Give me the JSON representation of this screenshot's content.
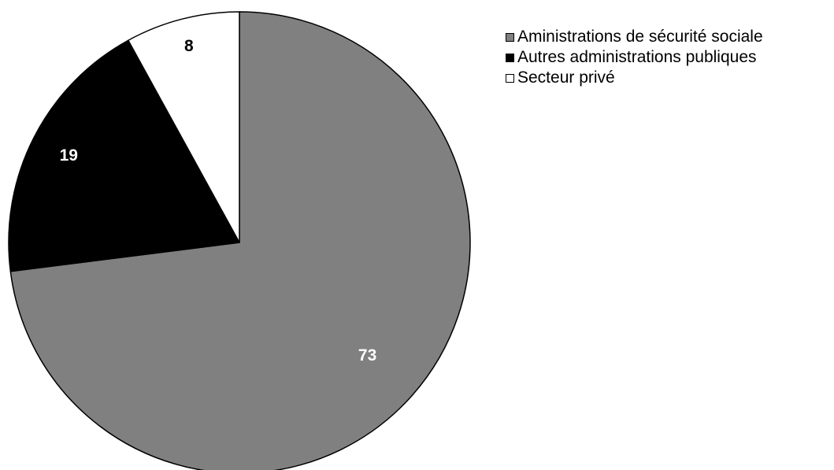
{
  "chart_data": {
    "type": "pie",
    "title": "",
    "start_angle": "12 o'clock, clockwise",
    "categories": [
      "Aministrations de sécurité sociale",
      "Autres administrations publiques",
      "Secteur privé"
    ],
    "values": [
      73,
      19,
      8
    ],
    "labels": [
      "73",
      "19",
      "8"
    ],
    "colors": [
      "#808080",
      "#000000",
      "#ffffff"
    ],
    "label_colors": [
      "#ffffff",
      "#ffffff",
      "#000000"
    ],
    "legend_position": "top-right"
  }
}
